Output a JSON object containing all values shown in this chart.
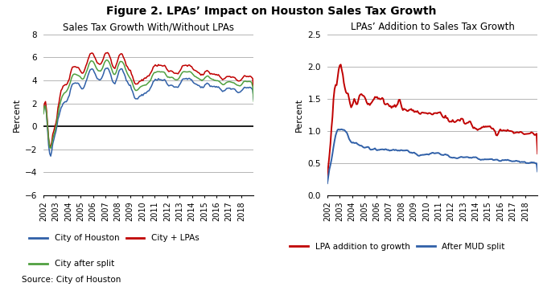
{
  "title": "Figure 2. LPAs’ Impact on Houston Sales Tax Growth",
  "left_title": "Sales Tax Growth With/Without LPAs",
  "right_title": "LPAs’ Addition to Sales Tax Growth",
  "left_ylabel": "Percent",
  "right_ylabel": "Percent",
  "source": "Source: City of Houston",
  "left_ylim": [
    -6,
    8
  ],
  "left_yticks": [
    -6,
    -4,
    -2,
    0,
    2,
    4,
    6,
    8
  ],
  "right_ylim": [
    0.0,
    2.5
  ],
  "right_yticks": [
    0.0,
    0.5,
    1.0,
    1.5,
    2.0,
    2.5
  ],
  "city_houston_color": "#3060A8",
  "city_lpas_color": "#C00000",
  "city_after_color": "#50A040",
  "lpa_addition_color": "#C00000",
  "after_mud_color": "#3060A8",
  "legend_left": [
    {
      "label": "City of Houston",
      "color": "#3060A8"
    },
    {
      "label": "City + LPAs",
      "color": "#C00000"
    },
    {
      "label": "City after split",
      "color": "#50A040"
    }
  ],
  "legend_right": [
    {
      "label": "LPA addition to growth",
      "color": "#C00000"
    },
    {
      "label": "After MUD split",
      "color": "#3060A8"
    }
  ],
  "bg_color": "#FFFFFF",
  "grid_color": "#AAAAAA",
  "spine_color": "#000000"
}
